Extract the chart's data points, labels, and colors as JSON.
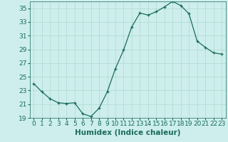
{
  "x": [
    0,
    1,
    2,
    3,
    4,
    5,
    6,
    7,
    8,
    9,
    10,
    11,
    12,
    13,
    14,
    15,
    16,
    17,
    18,
    19,
    20,
    21,
    22,
    23
  ],
  "y": [
    24.0,
    22.8,
    21.8,
    21.2,
    21.1,
    21.2,
    19.6,
    19.2,
    20.4,
    22.8,
    26.2,
    28.9,
    32.3,
    34.3,
    34.0,
    34.5,
    35.2,
    36.0,
    35.4,
    34.2,
    30.2,
    29.3,
    28.5,
    28.3
  ],
  "xlim": [
    -0.5,
    23.5
  ],
  "ylim": [
    19,
    36
  ],
  "yticks": [
    19,
    21,
    23,
    25,
    27,
    29,
    31,
    33,
    35
  ],
  "xticks": [
    0,
    1,
    2,
    3,
    4,
    5,
    6,
    7,
    8,
    9,
    10,
    11,
    12,
    13,
    14,
    15,
    16,
    17,
    18,
    19,
    20,
    21,
    22,
    23
  ],
  "xlabel": "Humidex (Indice chaleur)",
  "line_color": "#1a6b5a",
  "marker_color": "#1a6b5a",
  "bg_color": "#cdeeed",
  "grid_color": "#b0d8d0",
  "xlabel_fontsize": 7.5,
  "tick_fontsize": 6.5
}
